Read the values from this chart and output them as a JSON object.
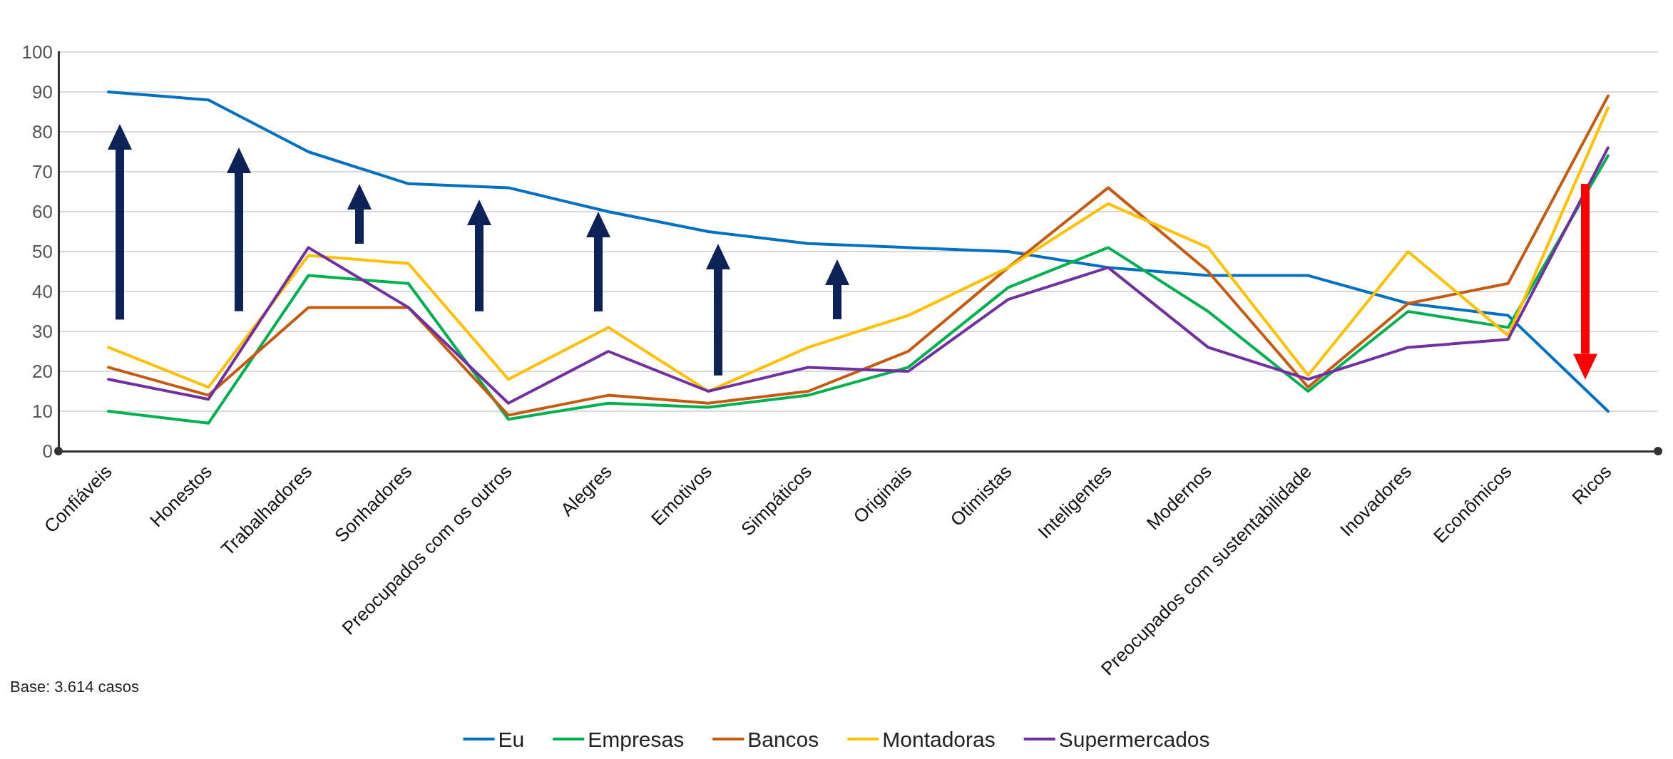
{
  "chart_data": {
    "type": "line",
    "categories": [
      "Confiáveis",
      "Honestos",
      "Trabalhadores",
      "Sonhadores",
      "Preocupados com os outros",
      "Alegres",
      "Emotivos",
      "Simpáticos",
      "Originais",
      "Otimistas",
      "Inteligentes",
      "Modernos",
      "Preocupados com sustentabilidade",
      "Inovadores",
      "Econômicos",
      "Ricos"
    ],
    "series": [
      {
        "name": "Eu",
        "color": "#0070c0",
        "values": [
          90,
          88,
          75,
          67,
          66,
          60,
          55,
          52,
          51,
          50,
          46,
          44,
          44,
          37,
          34,
          10
        ]
      },
      {
        "name": "Empresas",
        "color": "#00b050",
        "values": [
          10,
          7,
          44,
          42,
          8,
          12,
          11,
          14,
          21,
          41,
          51,
          35,
          15,
          35,
          31,
          74
        ]
      },
      {
        "name": "Bancos",
        "color": "#c55a11",
        "values": [
          21,
          14,
          36,
          36,
          9,
          14,
          12,
          15,
          25,
          46,
          66,
          45,
          16,
          37,
          42,
          89
        ]
      },
      {
        "name": "Montadoras",
        "color": "#ffc000",
        "values": [
          26,
          16,
          49,
          47,
          18,
          31,
          15,
          26,
          34,
          46,
          62,
          51,
          19,
          50,
          29,
          86
        ]
      },
      {
        "name": "Supermercados",
        "color": "#7030a0",
        "values": [
          18,
          13,
          51,
          36,
          12,
          25,
          15,
          21,
          20,
          38,
          46,
          26,
          18,
          26,
          28,
          76
        ]
      }
    ],
    "ylim": [
      0,
      100
    ],
    "yticks": [
      0,
      10,
      20,
      30,
      40,
      50,
      60,
      70,
      80,
      90,
      100
    ],
    "grid": "y",
    "legend": "bottom",
    "marker": "none",
    "line_style": "solid",
    "annotations": [
      "Base: 3.614 casos"
    ]
  }
}
